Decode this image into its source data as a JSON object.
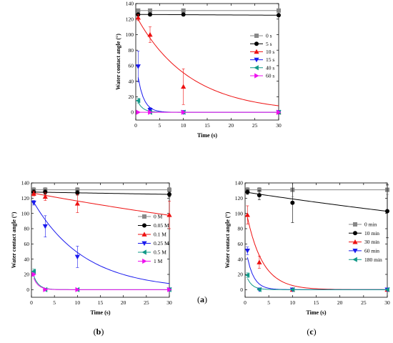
{
  "figure": {
    "panels": [
      {
        "caption_open": "(",
        "caption_letter": "a",
        "caption_close": ")"
      },
      {
        "caption_open": "(",
        "caption_letter": "b",
        "caption_close": ")"
      },
      {
        "caption_open": "(",
        "caption_letter": "c",
        "caption_close": ")"
      }
    ]
  },
  "chart_data": [
    {
      "type": "line",
      "panel": "a",
      "xlabel": "Time (s)",
      "ylabel": "Water contact angle (°)",
      "xlim": [
        0,
        30
      ],
      "ylim": [
        -10,
        140
      ],
      "xticks": [
        0,
        5,
        10,
        15,
        20,
        25,
        30
      ],
      "yticks": [
        0,
        20,
        40,
        60,
        80,
        100,
        120,
        140
      ],
      "legend_position": "right",
      "series": [
        {
          "name": "0 s",
          "color": "#888888",
          "marker": "square",
          "x": [
            0.5,
            3,
            10,
            30
          ],
          "y": [
            131,
            131,
            131,
            131
          ],
          "err": [
            2,
            2,
            2,
            2
          ],
          "curve": {
            "kind": "linear",
            "y0": 131,
            "y1": 131
          }
        },
        {
          "name": "5 s",
          "color": "#000000",
          "marker": "circle",
          "x": [
            0.5,
            3,
            10,
            30
          ],
          "y": [
            126,
            126,
            126,
            125
          ],
          "err": [
            2,
            2,
            2,
            2
          ],
          "curve": {
            "kind": "linear",
            "y0": 126,
            "y1": 125
          }
        },
        {
          "name": "10 s",
          "color": "#ee1111",
          "marker": "triangle-up",
          "x": [
            0.5,
            3,
            10,
            30
          ],
          "y": [
            122,
            100,
            33,
            0
          ],
          "err": [
            4,
            10,
            23,
            1
          ],
          "curve": {
            "kind": "exp",
            "a": 125,
            "k": 0.09
          }
        },
        {
          "name": "15 s",
          "color": "#1a1aee",
          "marker": "triangle-down",
          "x": [
            0.5,
            3,
            10,
            30
          ],
          "y": [
            59,
            3,
            0,
            0
          ],
          "err": [
            20,
            3,
            0,
            0
          ],
          "curve": {
            "kind": "exp",
            "a": 67,
            "k": 0.8
          }
        },
        {
          "name": "40 s",
          "color": "#119988",
          "marker": "triangle-left",
          "x": [
            0.5,
            3,
            10,
            30
          ],
          "y": [
            15,
            0,
            0,
            0
          ],
          "err": [
            3,
            0,
            0,
            0
          ],
          "curve": {
            "kind": "exp",
            "a": 20,
            "k": 0.9
          }
        },
        {
          "name": "60 s",
          "color": "#ee11ee",
          "marker": "triangle-right",
          "x": [
            0.5,
            3,
            10,
            30
          ],
          "y": [
            0,
            0,
            0,
            0
          ],
          "err": [
            0,
            0,
            0,
            0
          ],
          "curve": {
            "kind": "linear",
            "y0": 0,
            "y1": 0
          }
        }
      ]
    },
    {
      "type": "line",
      "panel": "b",
      "xlabel": "Time (s)",
      "ylabel": "Water contact angle (°)",
      "xlim": [
        0,
        30
      ],
      "ylim": [
        -10,
        140
      ],
      "xticks": [
        0,
        5,
        10,
        15,
        20,
        25,
        30
      ],
      "yticks": [
        0,
        20,
        40,
        60,
        80,
        100,
        120,
        140
      ],
      "legend_position": "right",
      "series": [
        {
          "name": "0 M",
          "color": "#888888",
          "marker": "square",
          "x": [
            0.5,
            3,
            10,
            30
          ],
          "y": [
            131,
            131,
            131,
            131
          ],
          "err": [
            3,
            3,
            3,
            3
          ],
          "curve": {
            "kind": "linear",
            "y0": 131,
            "y1": 131
          }
        },
        {
          "name": "0.05 M",
          "color": "#000000",
          "marker": "circle",
          "x": [
            0.5,
            3,
            10,
            30
          ],
          "y": [
            128,
            128,
            127,
            125
          ],
          "err": [
            3,
            3,
            3,
            3
          ],
          "curve": {
            "kind": "linear",
            "y0": 128,
            "y1": 125
          }
        },
        {
          "name": "0.1 M",
          "color": "#ee1111",
          "marker": "triangle-up",
          "x": [
            0.5,
            3,
            10,
            30
          ],
          "y": [
            126,
            122,
            113,
            98
          ],
          "err": [
            3,
            5,
            12,
            18
          ],
          "curve": {
            "kind": "exp",
            "a": 127,
            "k": 0.0088
          }
        },
        {
          "name": "0.25 M",
          "color": "#1a1aee",
          "marker": "triangle-down",
          "x": [
            0.5,
            3,
            10,
            30
          ],
          "y": [
            114,
            83,
            43,
            0
          ],
          "err": [
            3,
            14,
            14,
            2
          ],
          "curve": {
            "kind": "exp",
            "a": 120,
            "k": 0.09
          }
        },
        {
          "name": "0.5 M",
          "color": "#119988",
          "marker": "triangle-left",
          "x": [
            0.5,
            3,
            10,
            30
          ],
          "y": [
            24,
            0,
            0,
            0
          ],
          "err": [
            3,
            0,
            0,
            0
          ],
          "curve": {
            "kind": "exp",
            "a": 28,
            "k": 0.9
          }
        },
        {
          "name": "1 M",
          "color": "#ee11ee",
          "marker": "triangle-right",
          "x": [
            0.5,
            3,
            10,
            30
          ],
          "y": [
            20,
            0,
            0,
            0
          ],
          "err": [
            2,
            0,
            0,
            0
          ],
          "curve": {
            "kind": "exp",
            "a": 24,
            "k": 0.95
          }
        }
      ]
    },
    {
      "type": "line",
      "panel": "c",
      "xlabel": "Time (s)",
      "ylabel": "Water contact angle (°)",
      "xlim": [
        0,
        30
      ],
      "ylim": [
        -10,
        140
      ],
      "xticks": [
        0,
        5,
        10,
        15,
        20,
        25,
        30
      ],
      "yticks": [
        0,
        20,
        40,
        60,
        80,
        100,
        120,
        140
      ],
      "legend_position": "right",
      "series": [
        {
          "name": "0 min",
          "color": "#888888",
          "marker": "square",
          "x": [
            0.5,
            3,
            10,
            30
          ],
          "y": [
            131,
            131,
            131,
            131
          ],
          "err": [
            3,
            3,
            9,
            6
          ],
          "curve": {
            "kind": "linear",
            "y0": 131,
            "y1": 131
          }
        },
        {
          "name": "10 min",
          "color": "#000000",
          "marker": "circle",
          "x": [
            0.5,
            3,
            10,
            30
          ],
          "y": [
            128,
            124,
            114,
            103
          ],
          "err": [
            3,
            6,
            26,
            35
          ],
          "curve": {
            "kind": "exp",
            "a": 128,
            "k": 0.0073
          }
        },
        {
          "name": "30 min",
          "color": "#ee1111",
          "marker": "triangle-up",
          "x": [
            0.5,
            3,
            10,
            30
          ],
          "y": [
            98,
            36,
            0,
            0
          ],
          "err": [
            12,
            8,
            0,
            0
          ],
          "curve": {
            "kind": "exp",
            "a": 110,
            "k": 0.3
          }
        },
        {
          "name": "60 min",
          "color": "#1a1aee",
          "marker": "triangle-down",
          "x": [
            0.5,
            3,
            10,
            30
          ],
          "y": [
            51,
            0,
            0,
            0
          ],
          "err": [
            5,
            0,
            0,
            0
          ],
          "curve": {
            "kind": "exp",
            "a": 60,
            "k": 0.7
          }
        },
        {
          "name": "180 min",
          "color": "#119988",
          "marker": "triangle-left",
          "x": [
            0.5,
            3,
            10,
            30
          ],
          "y": [
            19,
            0,
            0,
            0
          ],
          "err": [
            3,
            0,
            0,
            0
          ],
          "curve": {
            "kind": "exp",
            "a": 23,
            "k": 0.9
          }
        }
      ]
    }
  ]
}
